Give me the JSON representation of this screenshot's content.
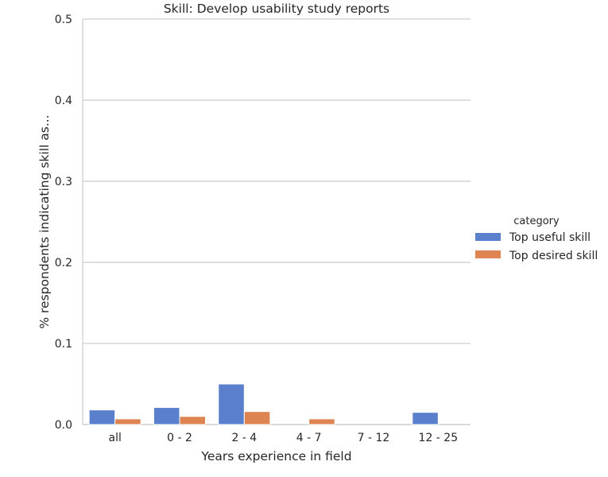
{
  "chart_data": {
    "type": "bar",
    "title": "Skill: Develop usability study reports",
    "xlabel": "Years experience in field",
    "ylabel": "% respondents indicating skill as...",
    "categories": [
      "all",
      "0 - 2",
      "2 - 4",
      "4 - 7",
      "7 - 12",
      "12 - 25"
    ],
    "ylim": [
      0,
      0.5
    ],
    "yticks": [
      "0.0",
      "0.1",
      "0.2",
      "0.3",
      "0.4",
      "0.5"
    ],
    "grid": "horizontal",
    "legend_position": "right",
    "legend_title": "category",
    "series": [
      {
        "name": "Top useful skill",
        "color": "#5a7fcc",
        "values": [
          0.018,
          0.021,
          0.05,
          0.0,
          0.0,
          0.015
        ]
      },
      {
        "name": "Top desired skill",
        "color": "#dd8452",
        "values": [
          0.007,
          0.01,
          0.016,
          0.007,
          0.0,
          0.0
        ]
      }
    ]
  }
}
